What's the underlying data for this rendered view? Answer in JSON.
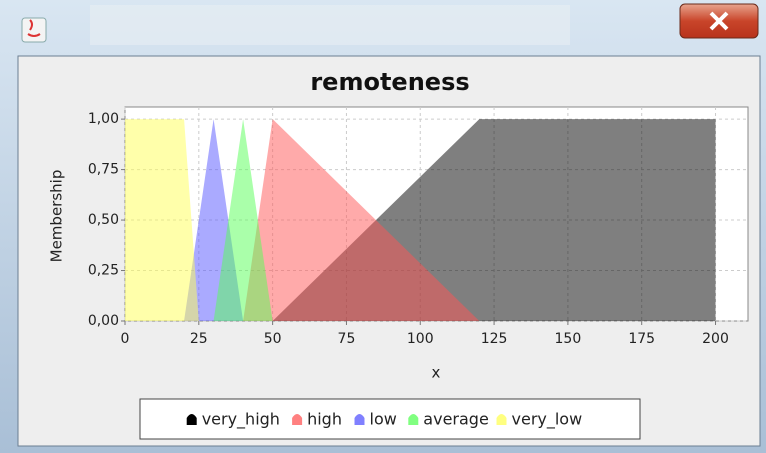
{
  "chart_data": {
    "type": "area",
    "title": "remoteness",
    "xlabel": "x",
    "ylabel": "Membership",
    "xlim": [
      0,
      211
    ],
    "ylim": [
      0,
      1.06
    ],
    "xticks": [
      0,
      25,
      50,
      75,
      100,
      125,
      150,
      175,
      200
    ],
    "yticks": [
      {
        "value": 0,
        "label": "0,00"
      },
      {
        "value": 0.25,
        "label": "0,25"
      },
      {
        "value": 0.5,
        "label": "0,50"
      },
      {
        "value": 0.75,
        "label": "0,75"
      },
      {
        "value": 1,
        "label": "1,00"
      }
    ],
    "grid": true,
    "legend": "bottom",
    "series": [
      {
        "name": "very_high",
        "color": "#000000",
        "x": [
          50,
          120,
          200,
          200
        ],
        "values": [
          0,
          1,
          1,
          0
        ]
      },
      {
        "name": "high",
        "color": "#ff5555",
        "x": [
          40,
          50,
          120
        ],
        "values": [
          0,
          1,
          0
        ]
      },
      {
        "name": "low",
        "color": "#5555ff",
        "x": [
          20,
          30,
          40
        ],
        "values": [
          0,
          1,
          0
        ]
      },
      {
        "name": "average",
        "color": "#55ff55",
        "x": [
          30,
          40,
          50
        ],
        "values": [
          0,
          1,
          0
        ]
      },
      {
        "name": "very_low",
        "color": "#ffff55",
        "x": [
          0,
          20,
          25
        ],
        "values": [
          1,
          1,
          0
        ]
      }
    ]
  }
}
